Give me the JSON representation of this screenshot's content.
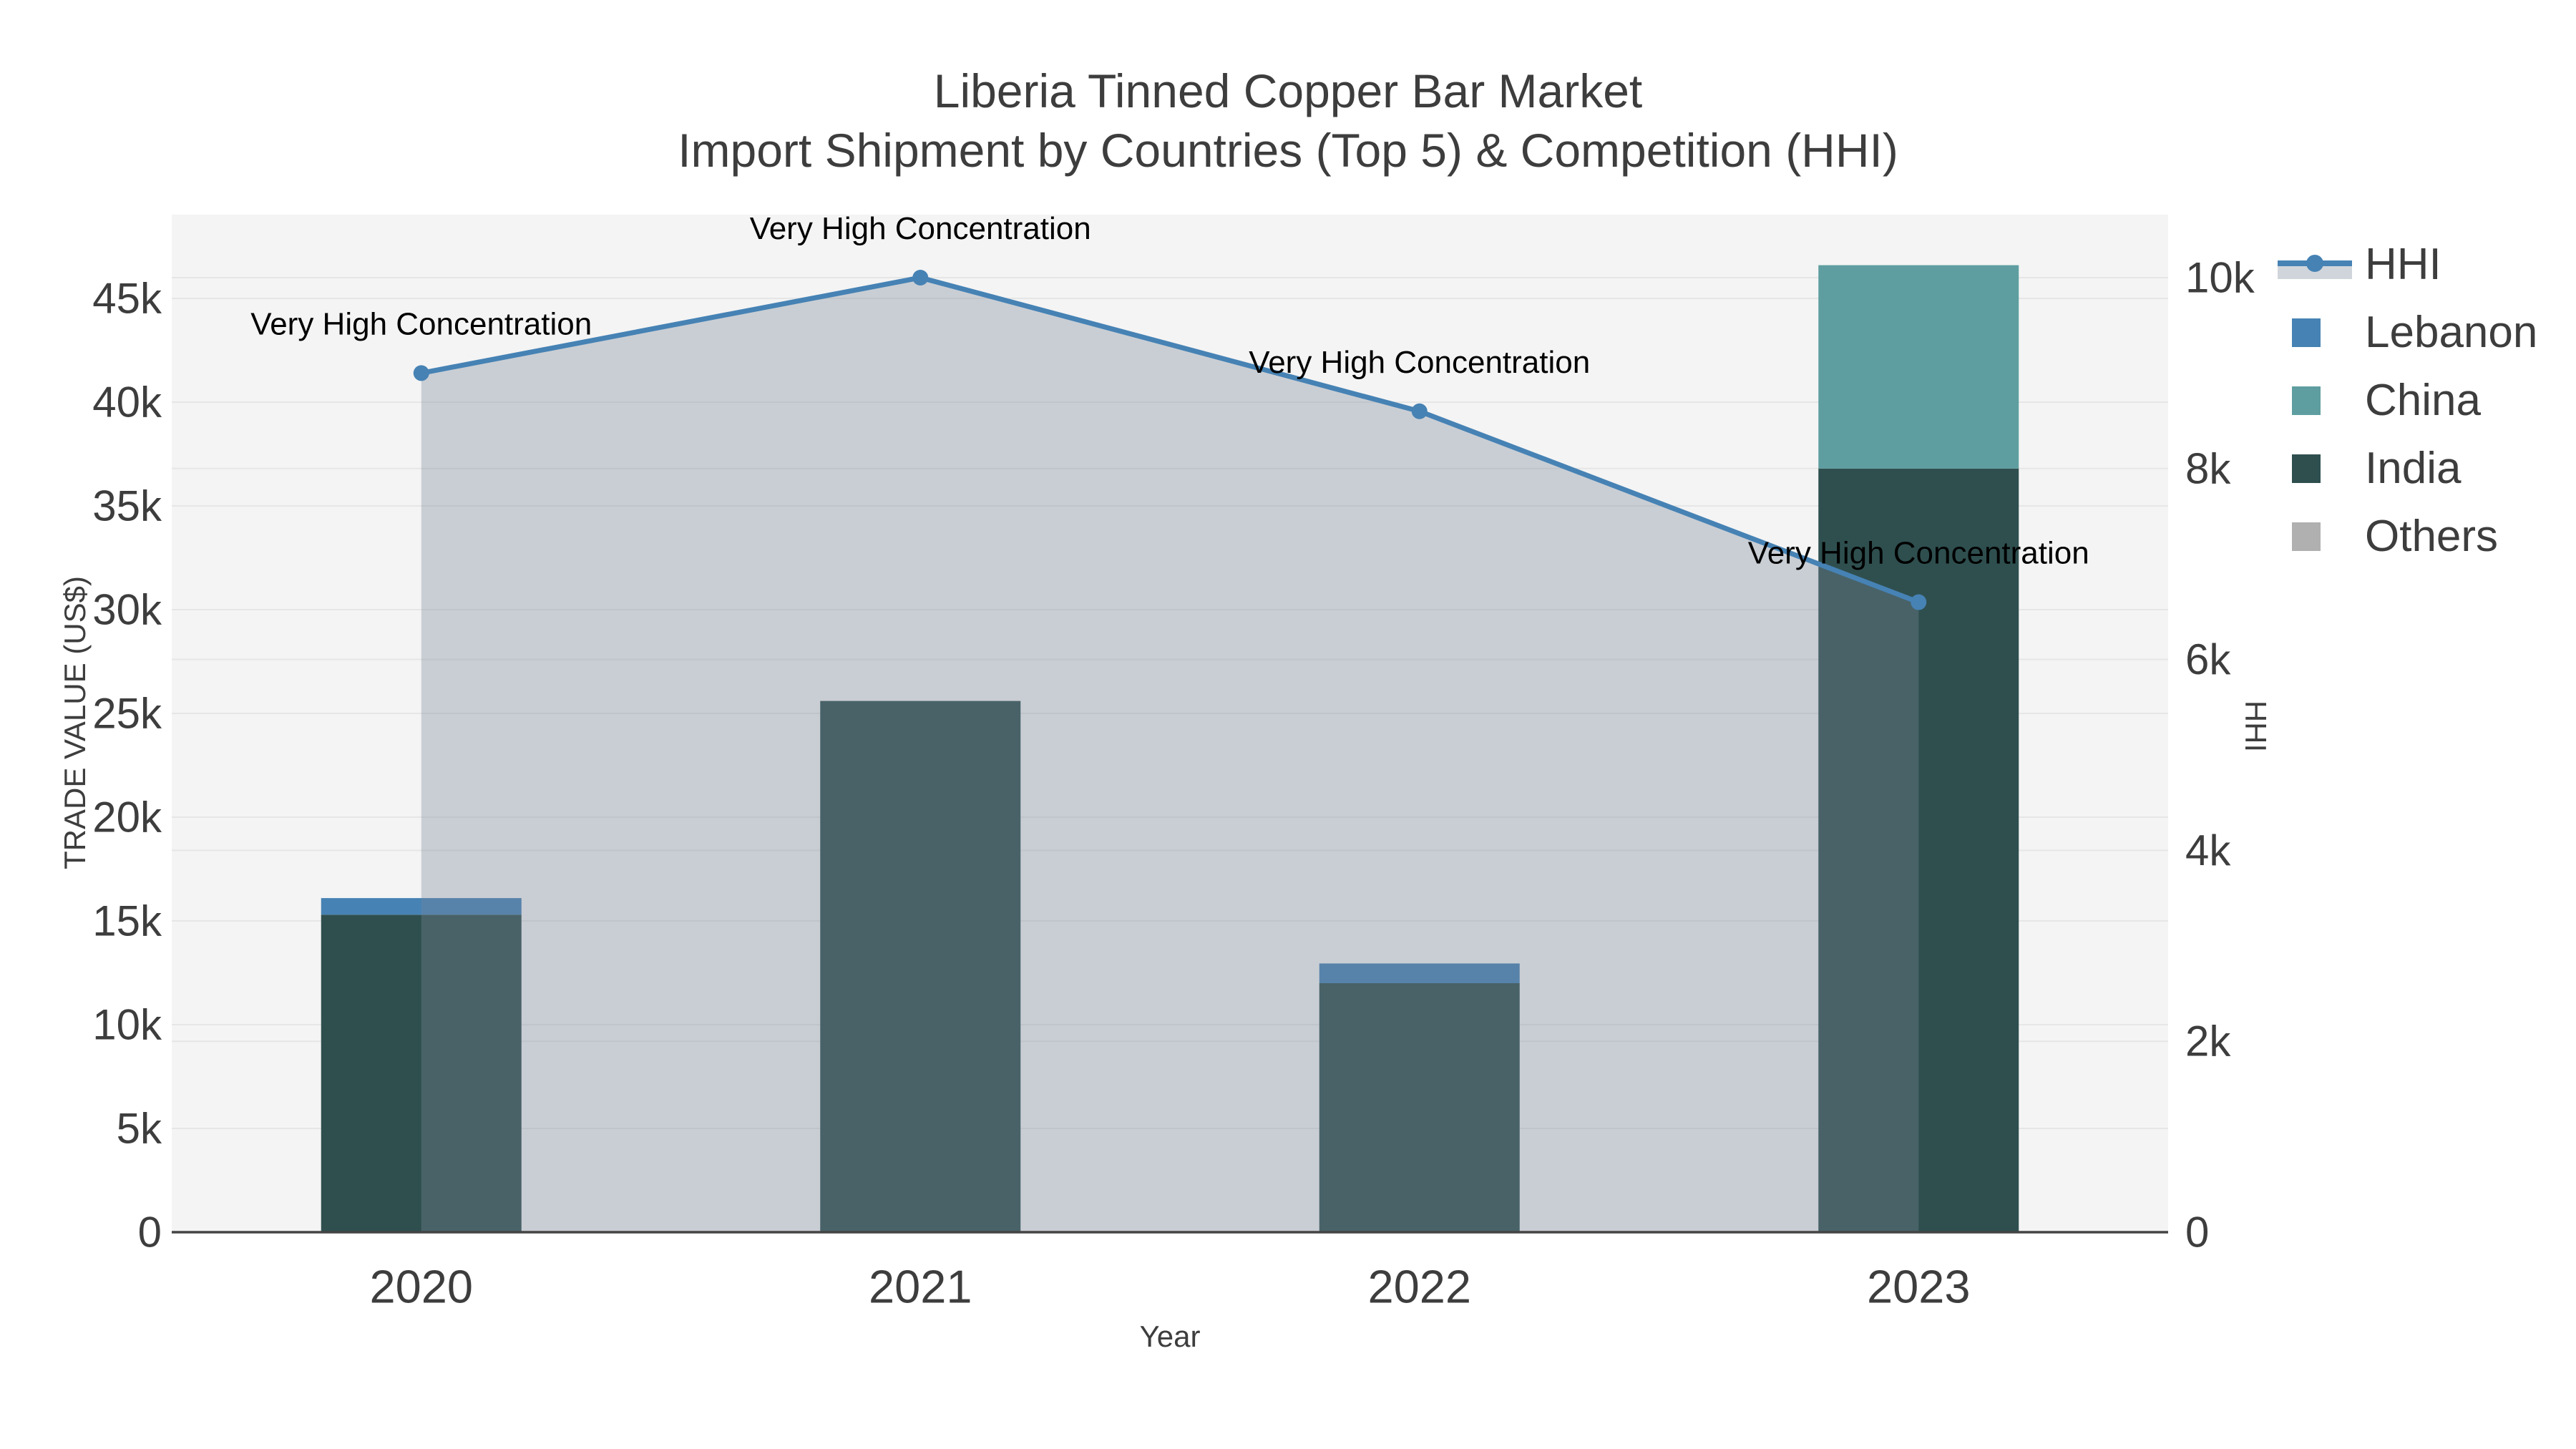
{
  "title": {
    "line1": "Liberia Tinned Copper Bar Market",
    "line2": "Import Shipment by Countries (Top 5) & Competition (HHI)"
  },
  "axes": {
    "x": {
      "title": "Year",
      "categories": [
        "2020",
        "2021",
        "2022",
        "2023"
      ]
    },
    "y_left": {
      "title": "TRADE VALUE (US$)",
      "ticks": [
        {
          "v": 0,
          "label": "0"
        },
        {
          "v": 5000,
          "label": "5k"
        },
        {
          "v": 10000,
          "label": "10k"
        },
        {
          "v": 15000,
          "label": "15k"
        },
        {
          "v": 20000,
          "label": "20k"
        },
        {
          "v": 25000,
          "label": "25k"
        },
        {
          "v": 30000,
          "label": "30k"
        },
        {
          "v": 35000,
          "label": "35k"
        },
        {
          "v": 40000,
          "label": "40k"
        },
        {
          "v": 45000,
          "label": "45k"
        }
      ]
    },
    "y_right": {
      "title": "HHI",
      "ticks": [
        {
          "v": 0,
          "label": "0"
        },
        {
          "v": 2000,
          "label": "2k"
        },
        {
          "v": 4000,
          "label": "4k"
        },
        {
          "v": 6000,
          "label": "6k"
        },
        {
          "v": 8000,
          "label": "8k"
        },
        {
          "v": 10000,
          "label": "10k"
        }
      ]
    }
  },
  "legend": {
    "items": [
      {
        "label": "HHI",
        "type": "line",
        "color": "#4682b4"
      },
      {
        "label": "Lebanon",
        "type": "swatch",
        "color": "#4682b4"
      },
      {
        "label": "China",
        "type": "swatch",
        "color": "#5f9ea0"
      },
      {
        "label": "India",
        "type": "swatch",
        "color": "#2f4f4f"
      },
      {
        "label": "Others",
        "type": "swatch",
        "color": "#b0b0b0"
      }
    ]
  },
  "colors": {
    "plot_bg": "#f4f4f4",
    "grid": "#e6e6e6",
    "axis_line": "#444444",
    "tick_text": "#3d3d3d",
    "annotation_text": "#000000",
    "hhi_line": "#4682b4",
    "hhi_area_fill": "rgba(119,136,153,0.35)"
  },
  "chart_data": {
    "type": "bar+line",
    "categories": [
      "2020",
      "2021",
      "2022",
      "2023"
    ],
    "series": [
      {
        "name": "India",
        "type": "bar",
        "axis": "left",
        "color": "#2f4f4f",
        "values": [
          15300,
          25600,
          12000,
          36800
        ]
      },
      {
        "name": "China",
        "type": "bar",
        "axis": "left",
        "color": "#5f9ea0",
        "values": [
          0,
          0,
          0,
          9800
        ]
      },
      {
        "name": "Lebanon",
        "type": "bar",
        "axis": "left",
        "color": "#4682b4",
        "values": [
          800,
          0,
          950,
          0
        ]
      },
      {
        "name": "Others",
        "type": "bar",
        "axis": "left",
        "color": "#b0b0b0",
        "values": [
          0,
          0,
          0,
          0
        ]
      },
      {
        "name": "HHI",
        "type": "line",
        "axis": "right",
        "color": "#4682b4",
        "values": [
          9000,
          10000,
          8600,
          6600
        ]
      }
    ],
    "stacked": true,
    "title": "Liberia Tinned Copper Bar Market — Import Shipment by Countries (Top 5) & Competition (HHI)",
    "xlabel": "Year",
    "ylabel_left": "TRADE VALUE (US$)",
    "ylabel_right": "HHI",
    "ylim_left": [
      0,
      49000
    ],
    "ylim_right": [
      0,
      10660
    ],
    "grid": true,
    "legend_position": "right",
    "annotations": [
      {
        "x": "2020",
        "series": "HHI",
        "text": "Very High Concentration"
      },
      {
        "x": "2021",
        "series": "HHI",
        "text": "Very High Concentration"
      },
      {
        "x": "2022",
        "series": "HHI",
        "text": "Very High Concentration"
      },
      {
        "x": "2023",
        "series": "HHI",
        "text": "Very High Concentration"
      }
    ]
  }
}
